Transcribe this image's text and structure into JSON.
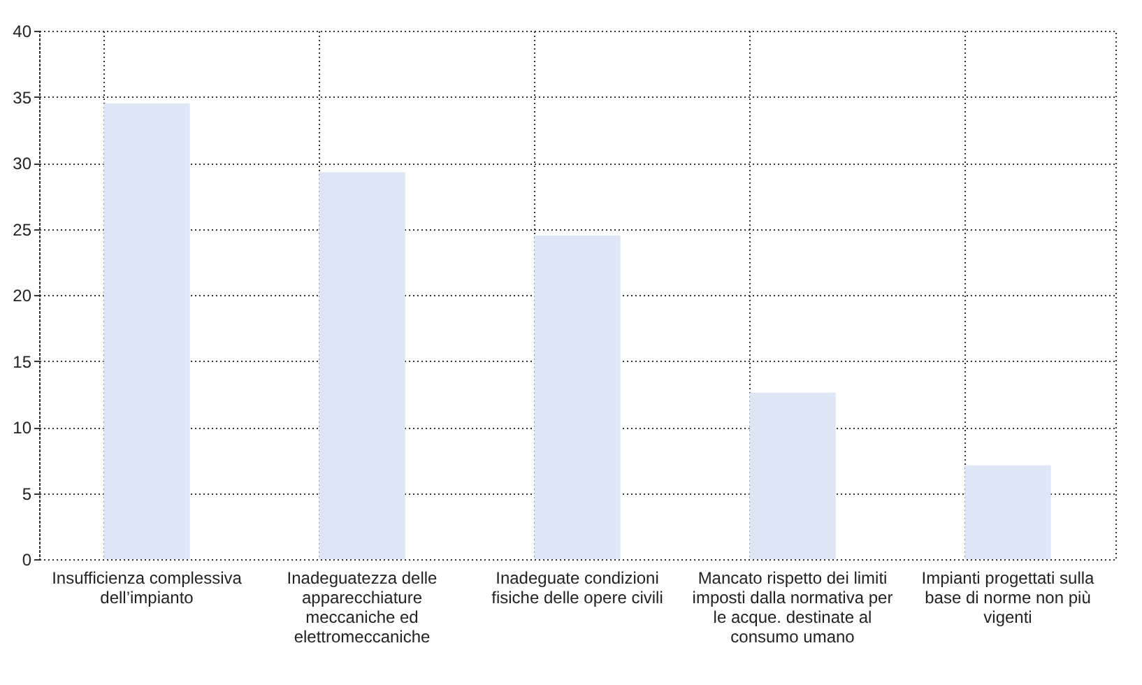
{
  "chart_data": {
    "type": "bar",
    "categories": [
      "Insufficienza complessiva dell’impianto",
      "Inadeguatezza delle apparecchiature meccaniche ed elettromeccaniche",
      "Inadeguate condizioni fisiche delle opere civili",
      "Mancato rispetto dei limiti imposti dalla normativa per le acque. destinate al consumo umano",
      "Impianti progettati sulla base di norme non più vigenti"
    ],
    "values": [
      34.5,
      29.3,
      24.5,
      12.6,
      7.1
    ],
    "color": "#dce6f5",
    "ylim": [
      0,
      40
    ],
    "yticks": [
      0,
      5,
      10,
      15,
      20,
      25,
      30,
      35,
      40
    ],
    "grid": true
  }
}
